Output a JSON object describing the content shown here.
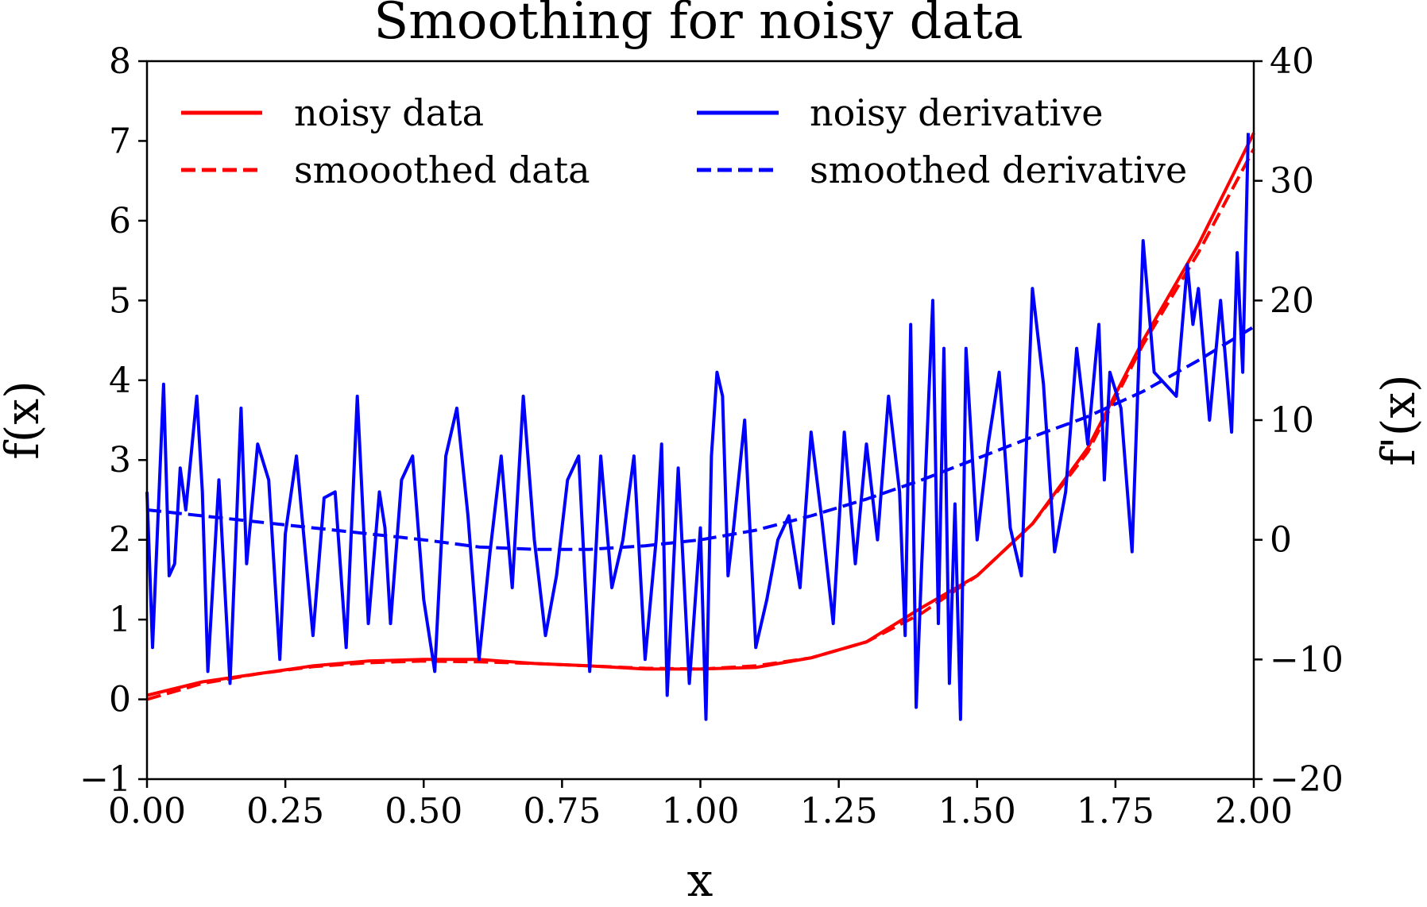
{
  "chart_data": {
    "type": "line",
    "title": "Smoothing for noisy data",
    "xlabel": "x",
    "ylabel": "f(x)",
    "y2label": "f'(x)",
    "xlim": [
      0,
      2
    ],
    "ylim": [
      -1,
      8
    ],
    "y2lim": [
      -20,
      40
    ],
    "x_ticks": [
      "0.00",
      "0.25",
      "0.50",
      "0.75",
      "1.00",
      "1.25",
      "1.50",
      "1.75",
      "2.00"
    ],
    "y_ticks": [
      "−1",
      "0",
      "1",
      "2",
      "3",
      "4",
      "5",
      "6",
      "7",
      "8"
    ],
    "y2_ticks": [
      "−20",
      "−10",
      "0",
      "10",
      "20",
      "30",
      "40"
    ],
    "grid": false,
    "legend": "upper, two columns",
    "series": [
      {
        "name": "noisy data",
        "axis": "left",
        "style": "solid",
        "color": "#ff0000",
        "x": [
          0,
          0.1,
          0.2,
          0.3,
          0.4,
          0.5,
          0.6,
          0.7,
          0.8,
          0.9,
          1.0,
          1.1,
          1.2,
          1.3,
          1.4,
          1.5,
          1.6,
          1.7,
          1.8,
          1.9,
          2.0
        ],
        "values": [
          0.05,
          0.22,
          0.32,
          0.42,
          0.48,
          0.5,
          0.5,
          0.45,
          0.42,
          0.38,
          0.38,
          0.4,
          0.52,
          0.72,
          1.15,
          1.55,
          2.2,
          3.15,
          4.5,
          5.7,
          7.1
        ]
      },
      {
        "name": "smooothed data",
        "axis": "left",
        "style": "dashed",
        "color": "#ff0000",
        "x": [
          0,
          0.1,
          0.2,
          0.3,
          0.4,
          0.5,
          0.6,
          0.7,
          0.8,
          0.9,
          1.0,
          1.1,
          1.2,
          1.3,
          1.4,
          1.5,
          1.6,
          1.7,
          1.8,
          1.9,
          2.0
        ],
        "values": [
          0.0,
          0.2,
          0.32,
          0.41,
          0.46,
          0.48,
          0.47,
          0.45,
          0.42,
          0.39,
          0.38,
          0.42,
          0.52,
          0.72,
          1.08,
          1.55,
          2.2,
          3.1,
          4.45,
          5.6,
          6.9
        ]
      },
      {
        "name": "noisy derivative",
        "axis": "right",
        "style": "solid",
        "color": "#0000ff",
        "x": [
          0,
          0.01,
          0.03,
          0.04,
          0.05,
          0.06,
          0.07,
          0.09,
          0.1,
          0.11,
          0.13,
          0.15,
          0.17,
          0.18,
          0.2,
          0.22,
          0.24,
          0.25,
          0.27,
          0.3,
          0.32,
          0.34,
          0.36,
          0.38,
          0.4,
          0.42,
          0.43,
          0.44,
          0.46,
          0.48,
          0.5,
          0.52,
          0.54,
          0.56,
          0.58,
          0.6,
          0.62,
          0.64,
          0.66,
          0.68,
          0.7,
          0.72,
          0.74,
          0.76,
          0.78,
          0.8,
          0.82,
          0.84,
          0.86,
          0.88,
          0.9,
          0.92,
          0.93,
          0.94,
          0.96,
          0.98,
          1.0,
          1.01,
          1.02,
          1.03,
          1.04,
          1.05,
          1.06,
          1.08,
          1.1,
          1.12,
          1.14,
          1.16,
          1.18,
          1.2,
          1.22,
          1.24,
          1.26,
          1.28,
          1.3,
          1.32,
          1.34,
          1.36,
          1.37,
          1.38,
          1.39,
          1.4,
          1.42,
          1.43,
          1.44,
          1.45,
          1.46,
          1.47,
          1.48,
          1.5,
          1.52,
          1.54,
          1.56,
          1.58,
          1.6,
          1.62,
          1.64,
          1.66,
          1.68,
          1.7,
          1.72,
          1.73,
          1.74,
          1.76,
          1.78,
          1.8,
          1.82,
          1.84,
          1.86,
          1.88,
          1.89,
          1.9,
          1.92,
          1.94,
          1.96,
          1.97,
          1.98,
          1.99
        ],
        "values": [
          4.0,
          -9.0,
          13.0,
          -3.0,
          -2.0,
          6.0,
          2.5,
          12.0,
          4.0,
          -11.0,
          5.0,
          -12.0,
          11.0,
          -2.0,
          8.0,
          5.0,
          -10.0,
          0.5,
          7.0,
          -8.0,
          3.5,
          4.0,
          -9.0,
          12.0,
          -7.0,
          4.0,
          1.0,
          -7.0,
          5.0,
          7.0,
          -5.0,
          -11.0,
          7.0,
          11.0,
          2.0,
          -10.0,
          -1.0,
          7.0,
          -4.0,
          12.0,
          0.0,
          -8.0,
          -3.0,
          5.0,
          7.0,
          -11.0,
          7.0,
          -4.0,
          0.0,
          7.0,
          -10.0,
          0.0,
          8.0,
          -13.0,
          6.0,
          -12.0,
          1.0,
          -15.0,
          7.0,
          14.0,
          12.0,
          -3.0,
          1.0,
          10.0,
          -9.0,
          -5.0,
          0.0,
          2.0,
          -4.0,
          9.0,
          1.5,
          -7.0,
          9.0,
          -2.0,
          8.0,
          0.0,
          12.0,
          4.0,
          -8.0,
          18.0,
          -14.0,
          -2.0,
          20.0,
          -7.0,
          16.0,
          -12.0,
          3.0,
          -15.0,
          16.0,
          0.0,
          8.0,
          14.0,
          1.0,
          -3.0,
          21.0,
          13.0,
          -1.0,
          4.0,
          16.0,
          8.0,
          18.0,
          5.0,
          14.0,
          11.0,
          -1.0,
          25.0,
          14.0,
          13.0,
          12.0,
          23.0,
          18.0,
          21.0,
          10.0,
          20.0,
          9.0,
          24.0,
          14.0,
          34.0
        ]
      },
      {
        "name": "smoothed derivative",
        "axis": "right",
        "style": "dashed",
        "color": "#0000ff",
        "x": [
          0,
          0.1,
          0.2,
          0.3,
          0.4,
          0.5,
          0.6,
          0.7,
          0.8,
          0.9,
          1.0,
          1.1,
          1.2,
          1.3,
          1.4,
          1.5,
          1.6,
          1.7,
          1.8,
          1.9,
          2.0
        ],
        "values": [
          2.5,
          2.0,
          1.5,
          1.0,
          0.5,
          0.0,
          -0.6,
          -0.8,
          -0.8,
          -0.5,
          0.0,
          0.8,
          2.0,
          3.4,
          5.0,
          6.8,
          8.6,
          10.3,
          12.4,
          15.0,
          17.8
        ]
      }
    ]
  }
}
